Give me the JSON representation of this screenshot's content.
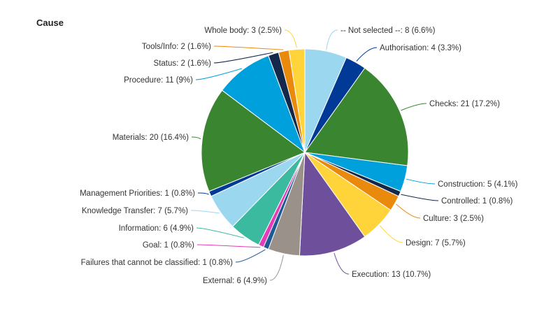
{
  "chart_data": {
    "type": "pie",
    "title": "Cause",
    "slices": [
      {
        "label": "-- Not selected --",
        "count": 8,
        "percent": "6.6%",
        "color": "#9bd8f0"
      },
      {
        "label": "Authorisation",
        "count": 4,
        "percent": "3.3%",
        "color": "#003a96"
      },
      {
        "label": "Checks",
        "count": 21,
        "percent": "17.2%",
        "color": "#3a8530"
      },
      {
        "label": "Construction",
        "count": 5,
        "percent": "4.1%",
        "color": "#00a0dc"
      },
      {
        "label": "Controlled",
        "count": 1,
        "percent": "0.8%",
        "color": "#14284b"
      },
      {
        "label": "Culture",
        "count": 3,
        "percent": "2.5%",
        "color": "#ea8a0c"
      },
      {
        "label": "Design",
        "count": 7,
        "percent": "5.7%",
        "color": "#ffd43b"
      },
      {
        "label": "Execution",
        "count": 13,
        "percent": "10.7%",
        "color": "#6e4f9b"
      },
      {
        "label": "External",
        "count": 6,
        "percent": "4.9%",
        "color": "#9a928a"
      },
      {
        "label": "Failures that cannot be classified",
        "count": 1,
        "percent": "0.8%",
        "color": "#1f5a96"
      },
      {
        "label": "Goal",
        "count": 1,
        "percent": "0.8%",
        "color": "#e63cb9"
      },
      {
        "label": "Information",
        "count": 6,
        "percent": "4.9%",
        "color": "#3cbaa0"
      },
      {
        "label": "Knowledge Transfer",
        "count": 7,
        "percent": "5.7%",
        "color": "#9bd8f0"
      },
      {
        "label": "Management Priorities",
        "count": 1,
        "percent": "0.8%",
        "color": "#003a96"
      },
      {
        "label": "Materials",
        "count": 20,
        "percent": "16.4%",
        "color": "#3a8530"
      },
      {
        "label": "Procedure",
        "count": 11,
        "percent": "9%",
        "color": "#00a0dc"
      },
      {
        "label": "Status",
        "count": 2,
        "percent": "1.6%",
        "color": "#14284b"
      },
      {
        "label": "Tools/Info",
        "count": 2,
        "percent": "1.6%",
        "color": "#ea8a0c"
      },
      {
        "label": "Whole body",
        "count": 3,
        "percent": "2.5%",
        "color": "#ffd43b"
      }
    ],
    "legend": "none"
  }
}
